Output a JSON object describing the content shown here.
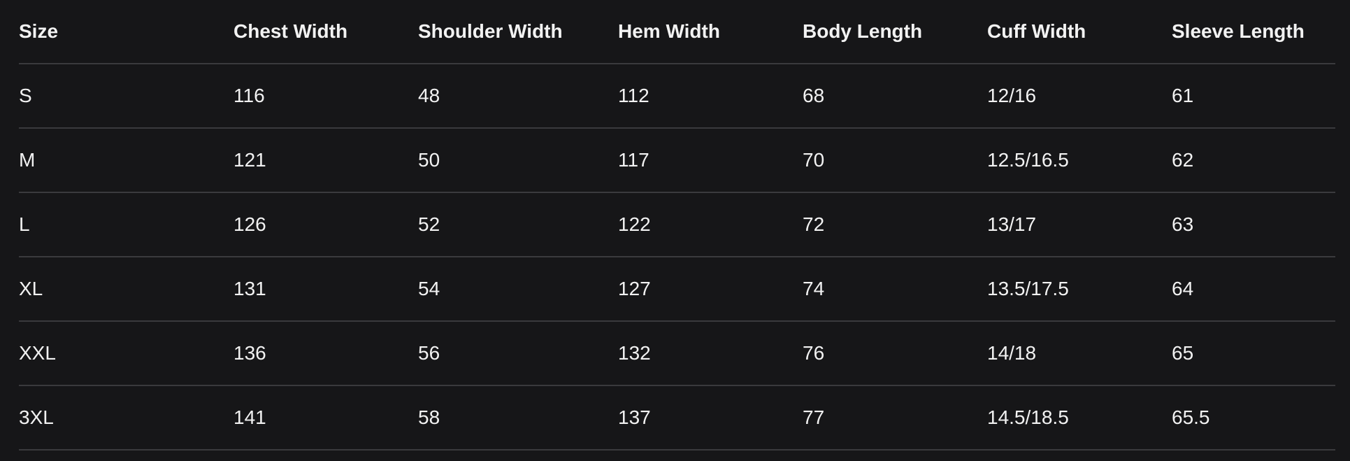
{
  "table": {
    "headers": [
      "Size",
      "Chest Width",
      "Shoulder Width",
      "Hem Width",
      "Body Length",
      "Cuff Width",
      "Sleeve Length"
    ],
    "rows": [
      [
        "S",
        "116",
        "48",
        "112",
        "68",
        "12/16",
        "61"
      ],
      [
        "M",
        "121",
        "50",
        "117",
        "70",
        "12.5/16.5",
        "62"
      ],
      [
        "L",
        "126",
        "52",
        "122",
        "72",
        "13/17",
        "63"
      ],
      [
        "XL",
        "131",
        "54",
        "127",
        "74",
        "13.5/17.5",
        "64"
      ],
      [
        "XXL",
        "136",
        "56",
        "132",
        "76",
        "14/18",
        "65"
      ],
      [
        "3XL",
        "141",
        "58",
        "137",
        "77",
        "14.5/18.5",
        "65.5"
      ]
    ]
  },
  "colors": {
    "background": "#161618",
    "text": "#f2f2f2",
    "divider": "#3a3a3d"
  }
}
